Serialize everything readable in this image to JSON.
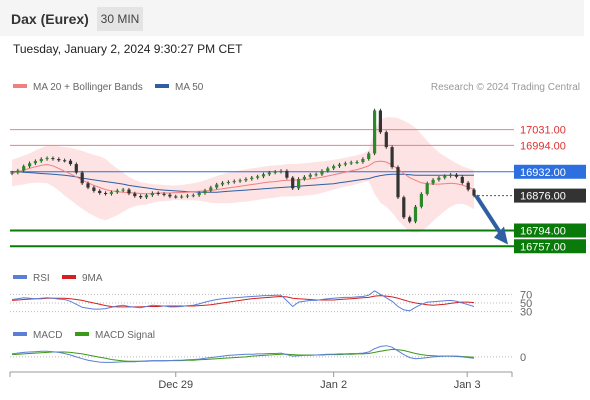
{
  "header": {
    "title": "Dax (Eurex)",
    "timeframe": "30 MIN"
  },
  "datetime": "Tuesday, January 2, 2024 9:30:27 PM CET",
  "copyright": "Research © 2024 Trading Central",
  "colors": {
    "ma20": "#f08080",
    "ma50": "#2e5fa3",
    "bollinger_fill": "#fde3e3",
    "resistance": "#f08080",
    "pivot": "#2e6fe0",
    "support": "#0a7a0a",
    "arrow": "#2e5fa3",
    "last_price_bg": "#333333",
    "rsi": "#5b7fd6",
    "rsi_ma": "#d42020",
    "macd": "#5b7fd6",
    "macd_signal": "#3a9a1a"
  },
  "chart_data": [
    {
      "type": "candlestick",
      "legend": [
        "MA 20 + Bollinger Bands",
        "MA 50"
      ],
      "x_ticks": [
        "Dec 29",
        "Jan 2",
        "Jan 3"
      ],
      "ylim": [
        16720,
        17110
      ],
      "levels": [
        {
          "label": "17031.00",
          "value": 17031,
          "kind": "resistance"
        },
        {
          "label": "16994.00",
          "value": 16994,
          "kind": "resistance"
        },
        {
          "label": "16932.00",
          "value": 16932,
          "kind": "pivot"
        },
        {
          "label": "16876.00",
          "value": 16876,
          "kind": "last"
        },
        {
          "label": "16794.00",
          "value": 16794,
          "kind": "support"
        },
        {
          "label": "16757.00",
          "value": 16757,
          "kind": "support"
        }
      ],
      "close": [
        16930,
        16935,
        16945,
        16952,
        16957,
        16962,
        16964,
        16962,
        16959,
        16958,
        16950,
        16930,
        16905,
        16895,
        16887,
        16882,
        16880,
        16884,
        16888,
        16890,
        16881,
        16875,
        16872,
        16877,
        16882,
        16880,
        16878,
        16874,
        16873,
        16874,
        16876,
        16877,
        16882,
        16888,
        16895,
        16902,
        16906,
        16908,
        16910,
        16912,
        16915,
        16918,
        16921,
        16926,
        16930,
        16932,
        16934,
        16918,
        16893,
        16915,
        16920,
        16925,
        16926,
        16934,
        16940,
        16945,
        16949,
        16952,
        16954,
        16955,
        16962,
        16975,
        17076,
        17025,
        16990,
        16943,
        16872,
        16825,
        16815,
        16850,
        16880,
        16905,
        16913,
        16918,
        16922,
        16925,
        16920,
        16906,
        16890,
        16876
      ],
      "ma20": [
        16928,
        16932,
        16936,
        16940,
        16944,
        16947,
        16949,
        16946,
        16940,
        16933,
        16927,
        16920,
        16913,
        16906,
        16900,
        16895,
        16890,
        16887,
        16885,
        16884,
        16883,
        16882,
        16881,
        16880,
        16881,
        16882,
        16882,
        16882,
        16883,
        16883,
        16884,
        16885,
        16886,
        16887,
        16888,
        16890,
        16892,
        16894,
        16896,
        16898,
        16900,
        16902,
        16904,
        16906,
        16908,
        16909,
        16911,
        16912,
        16912,
        16913,
        16914,
        16915,
        16917,
        16919,
        16922,
        16925,
        16928,
        16931,
        16934,
        16937,
        16941,
        16946,
        16955,
        16957,
        16955,
        16948,
        16938,
        16928,
        16918,
        16912,
        16906,
        16904,
        16903,
        16903,
        16904,
        16905,
        16904,
        16901,
        16896,
        16890
      ],
      "ma50": [
        16932,
        16932,
        16931,
        16930,
        16929,
        16928,
        16927,
        16926,
        16925,
        16924,
        16922,
        16920,
        16917,
        16915,
        16913,
        16911,
        16909,
        16907,
        16905,
        16903,
        16900,
        16898,
        16896,
        16894,
        16892,
        16890,
        16889,
        16888,
        16887,
        16886,
        16885,
        16885,
        16884,
        16884,
        16884,
        16884,
        16885,
        16886,
        16887,
        16888,
        16889,
        16890,
        16891,
        16892,
        16893,
        16894,
        16895,
        16896,
        16897,
        16898,
        16899,
        16900,
        16901,
        16902,
        16903,
        16904,
        16906,
        16908,
        16910,
        16912,
        16914,
        16916,
        16920,
        16923,
        16925,
        16926,
        16926,
        16926,
        16925,
        16924,
        16924,
        16924,
        16924,
        16924,
        16924,
        16924,
        16924,
        16924,
        16924,
        16924
      ],
      "bb_upper": [
        16960,
        16965,
        16970,
        16975,
        16982,
        16988,
        16993,
        16994,
        16992,
        16990,
        16988,
        16985,
        16981,
        16976,
        16972,
        16968,
        16962,
        16950,
        16940,
        16930,
        16920,
        16913,
        16908,
        16905,
        16903,
        16902,
        16901,
        16900,
        16900,
        16901,
        16903,
        16905,
        16908,
        16912,
        16917,
        16922,
        16926,
        16930,
        16933,
        16935,
        16938,
        16940,
        16942,
        16944,
        16946,
        16947,
        16948,
        16950,
        16950,
        16951,
        16952,
        16953,
        16955,
        16956,
        16958,
        16960,
        16962,
        16965,
        16968,
        16971,
        16975,
        16982,
        17030,
        17055,
        17060,
        17060,
        17058,
        17052,
        17045,
        17035,
        17020,
        17005,
        16990,
        16978,
        16968,
        16960,
        16952,
        16945,
        16940,
        16936
      ],
      "bb_lower": [
        16898,
        16900,
        16902,
        16905,
        16906,
        16906,
        16905,
        16898,
        16888,
        16876,
        16866,
        16855,
        16845,
        16836,
        16828,
        16822,
        16818,
        16824,
        16830,
        16838,
        16846,
        16851,
        16854,
        16855,
        16859,
        16862,
        16863,
        16864,
        16866,
        16865,
        16865,
        16865,
        16864,
        16862,
        16859,
        16858,
        16858,
        16858,
        16859,
        16861,
        16862,
        16864,
        16866,
        16868,
        16870,
        16871,
        16874,
        16874,
        16874,
        16875,
        16876,
        16877,
        16879,
        16882,
        16886,
        16890,
        16894,
        16897,
        16900,
        16903,
        16907,
        16910,
        16880,
        16859,
        16850,
        16836,
        16818,
        16804,
        16791,
        16789,
        16792,
        16803,
        16816,
        16828,
        16840,
        16850,
        16856,
        16857,
        16852,
        16844
      ]
    },
    {
      "type": "line",
      "legend": [
        "RSI",
        "9MA"
      ],
      "ylim": [
        20,
        80
      ],
      "y_ticks": [
        "70",
        "50",
        "30"
      ],
      "series": [
        {
          "name": "RSI",
          "values": [
            58,
            60,
            62,
            61,
            60,
            61,
            62,
            61,
            59,
            58,
            54,
            47,
            40,
            38,
            36,
            36,
            37,
            40,
            43,
            45,
            42,
            40,
            39,
            42,
            45,
            44,
            43,
            41,
            41,
            42,
            44,
            45,
            48,
            52,
            55,
            58,
            60,
            61,
            62,
            63,
            64,
            65,
            66,
            67,
            67,
            68,
            68,
            55,
            42,
            52,
            54,
            56,
            56,
            58,
            60,
            61,
            62,
            63,
            63,
            64,
            65,
            68,
            78,
            70,
            62,
            54,
            42,
            34,
            32,
            40,
            47,
            52,
            53,
            54,
            55,
            56,
            54,
            50,
            46,
            42
          ]
        },
        {
          "name": "9MA",
          "values": [
            56,
            57,
            58,
            59,
            60,
            60,
            61,
            61,
            61,
            61,
            60,
            58,
            56,
            53,
            50,
            47,
            44,
            42,
            41,
            41,
            41,
            41,
            41,
            42,
            42,
            42,
            43,
            43,
            43,
            43,
            43,
            43,
            44,
            45,
            46,
            48,
            50,
            52,
            54,
            56,
            58,
            60,
            61,
            62,
            63,
            64,
            65,
            64,
            61,
            60,
            59,
            58,
            57,
            57,
            57,
            57,
            58,
            59,
            60,
            61,
            62,
            63,
            66,
            67,
            66,
            64,
            61,
            57,
            53,
            50,
            48,
            46,
            45,
            46,
            47,
            49,
            51,
            52,
            52,
            51
          ]
        }
      ]
    },
    {
      "type": "line",
      "legend": [
        "MACD",
        "MACD Signal"
      ],
      "ylim": [
        -30,
        40
      ],
      "y_ticks": [
        "0"
      ],
      "series": [
        {
          "name": "MACD",
          "values": [
            8,
            10,
            12,
            13,
            14,
            15,
            15,
            14,
            12,
            9,
            5,
            0,
            -5,
            -9,
            -12,
            -14,
            -15,
            -15,
            -14,
            -13,
            -13,
            -13,
            -12,
            -11,
            -10,
            -10,
            -10,
            -10,
            -9,
            -9,
            -8,
            -7,
            -6,
            -4,
            -2,
            0,
            2,
            4,
            5,
            6,
            7,
            7,
            8,
            8,
            9,
            9,
            10,
            6,
            2,
            3,
            4,
            4,
            5,
            6,
            7,
            7,
            8,
            8,
            9,
            9,
            10,
            13,
            22,
            28,
            30,
            26,
            16,
            6,
            -2,
            -5,
            -4,
            -2,
            0,
            1,
            2,
            2,
            1,
            0,
            -2,
            -4
          ]
        },
        {
          "name": "MACD Signal",
          "values": [
            6,
            7,
            8,
            9,
            10,
            11,
            12,
            13,
            13,
            13,
            12,
            10,
            8,
            5,
            2,
            -1,
            -4,
            -7,
            -9,
            -11,
            -12,
            -12,
            -12,
            -12,
            -11,
            -11,
            -11,
            -10,
            -10,
            -10,
            -9,
            -9,
            -8,
            -7,
            -6,
            -5,
            -4,
            -3,
            -2,
            -1,
            0,
            2,
            3,
            4,
            5,
            6,
            7,
            7,
            6,
            5,
            5,
            5,
            5,
            5,
            6,
            6,
            6,
            7,
            7,
            8,
            8,
            9,
            12,
            15,
            18,
            20,
            19,
            17,
            13,
            9,
            6,
            4,
            3,
            2,
            2,
            2,
            2,
            1,
            0,
            -1
          ]
        }
      ]
    }
  ]
}
